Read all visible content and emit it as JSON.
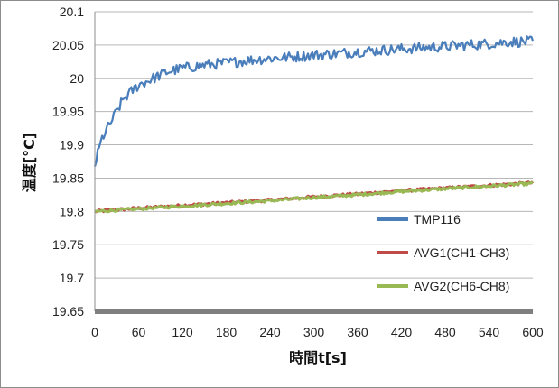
{
  "chart_data": {
    "type": "line",
    "title": "",
    "xlabel": "時間t[s]",
    "ylabel": "温度[°C]",
    "xlim": [
      0,
      600
    ],
    "ylim": [
      19.65,
      20.1
    ],
    "x_ticks": [
      0,
      60,
      120,
      180,
      240,
      300,
      360,
      420,
      480,
      540,
      600
    ],
    "y_ticks": [
      19.65,
      19.7,
      19.75,
      19.8,
      19.85,
      19.9,
      19.95,
      20,
      20.05,
      20.1
    ],
    "y_tick_labels": [
      "19.65",
      "19.7",
      "19.75",
      "19.8",
      "19.85",
      "19.9",
      "19.95",
      "20",
      "20.05",
      "20.1"
    ],
    "grid": "horizontal",
    "legend_position": "bottom-right",
    "series": [
      {
        "name": "TMP116",
        "color": "#4a7ebb",
        "x": [
          0,
          10,
          20,
          30,
          40,
          50,
          60,
          80,
          100,
          120,
          150,
          180,
          210,
          240,
          270,
          300,
          330,
          360,
          390,
          420,
          450,
          480,
          510,
          540,
          570,
          600
        ],
        "values": [
          19.87,
          19.91,
          19.93,
          19.95,
          19.97,
          19.98,
          19.99,
          20.0,
          20.01,
          20.015,
          20.02,
          20.023,
          20.027,
          20.03,
          20.032,
          20.035,
          20.037,
          20.04,
          20.042,
          20.044,
          20.046,
          20.048,
          20.05,
          20.052,
          20.055,
          20.055
        ],
        "noise": 0.008
      },
      {
        "name": "AVG1(CH1-CH3)",
        "color": "#be4b48",
        "x": [
          0,
          60,
          120,
          180,
          240,
          300,
          360,
          420,
          480,
          540,
          600
        ],
        "values": [
          19.8,
          19.805,
          19.809,
          19.813,
          19.817,
          19.822,
          19.826,
          19.831,
          19.835,
          19.839,
          19.843
        ],
        "noise": 0.002
      },
      {
        "name": "AVG2(CH6-CH8)",
        "color": "#98b954",
        "x": [
          0,
          60,
          120,
          180,
          240,
          300,
          360,
          420,
          480,
          540,
          600
        ],
        "values": [
          19.8,
          19.804,
          19.808,
          19.812,
          19.816,
          19.821,
          19.825,
          19.83,
          19.834,
          19.838,
          19.842
        ],
        "noise": 0.002
      }
    ]
  }
}
